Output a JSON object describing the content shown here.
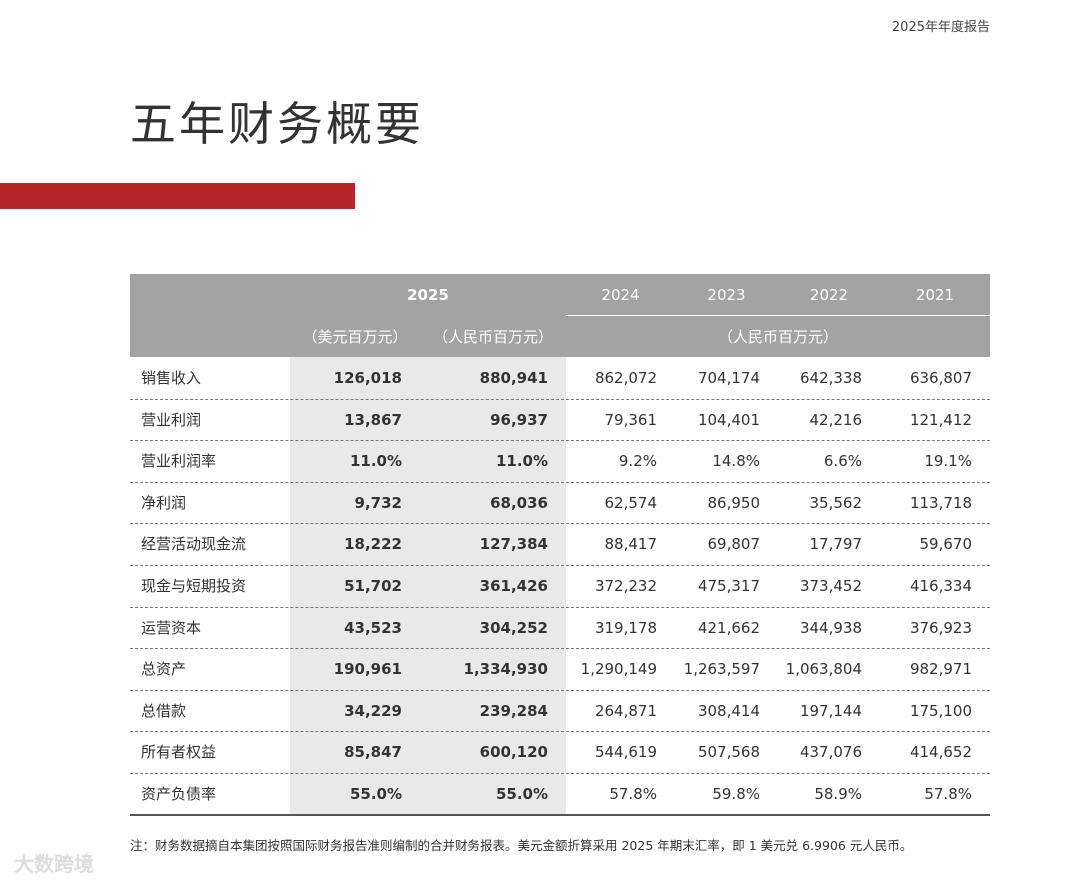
{
  "header": {
    "report_title": "2025年年度报告"
  },
  "title": "五年财务概要",
  "table": {
    "year_2025": "2025",
    "usd_unit": "（美元百万元）",
    "rmb_unit": "（人民币百万元）",
    "years": [
      "2024",
      "2023",
      "2022",
      "2021"
    ],
    "other_unit": "（人民币百万元）",
    "rows": [
      [
        "销售收入",
        "126,018",
        "880,941",
        "862,072",
        "704,174",
        "642,338",
        "636,807"
      ],
      [
        "营业利润",
        "13,867",
        "96,937",
        "79,361",
        "104,401",
        "42,216",
        "121,412"
      ],
      [
        "营业利润率",
        "11.0%",
        "11.0%",
        "9.2%",
        "14.8%",
        "6.6%",
        "19.1%"
      ],
      [
        "净利润",
        "9,732",
        "68,036",
        "62,574",
        "86,950",
        "35,562",
        "113,718"
      ],
      [
        "经营活动现金流",
        "18,222",
        "127,384",
        "88,417",
        "69,807",
        "17,797",
        "59,670"
      ],
      [
        "现金与短期投资",
        "51,702",
        "361,426",
        "372,232",
        "475,317",
        "373,452",
        "416,334"
      ],
      [
        "运营资本",
        "43,523",
        "304,252",
        "319,178",
        "421,662",
        "344,938",
        "376,923"
      ],
      [
        "总资产",
        "190,961",
        "1,334,930",
        "1,290,149",
        "1,263,597",
        "1,063,804",
        "982,971"
      ],
      [
        "总借款",
        "34,229",
        "239,284",
        "264,871",
        "308,414",
        "197,144",
        "175,100"
      ],
      [
        "所有者权益",
        "85,847",
        "600,120",
        "544,619",
        "507,568",
        "437,076",
        "414,652"
      ],
      [
        "资产负债率",
        "55.0%",
        "55.0%",
        "57.8%",
        "59.8%",
        "58.9%",
        "57.8%"
      ]
    ]
  },
  "note": "注：财务数据摘自本集团按照国际财务报告准则编制的合并财务报表。美元金额折算采用 2025 年期末汇率，即 1 美元兑 6.9906 元人民币。",
  "watermark": "大数跨境"
}
